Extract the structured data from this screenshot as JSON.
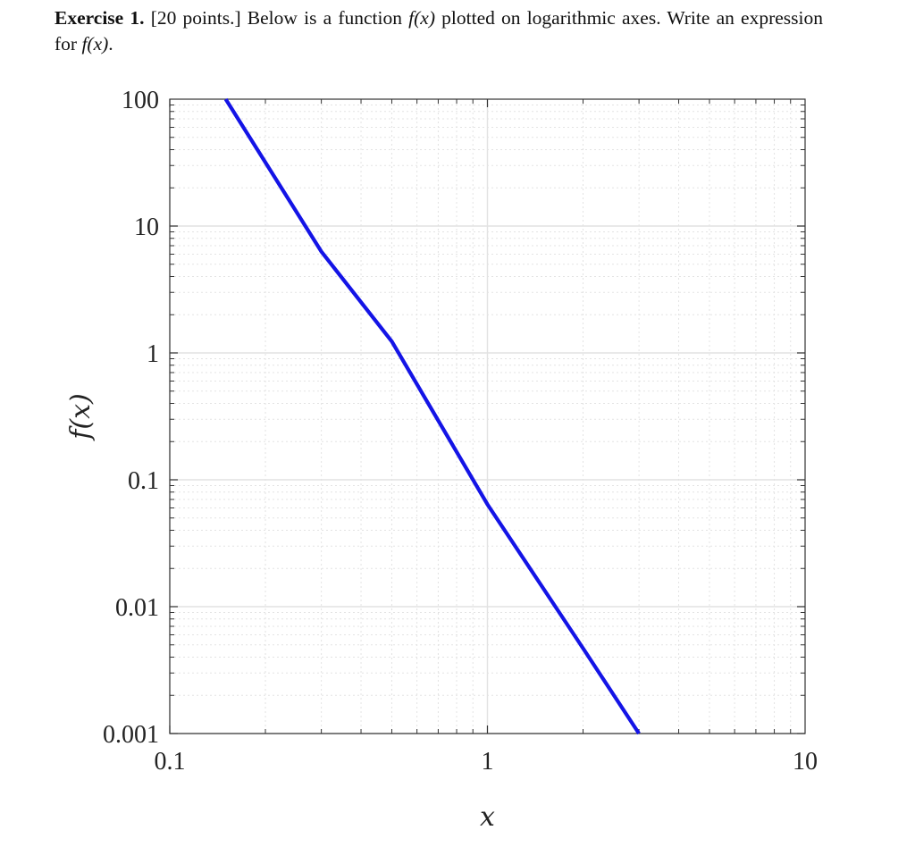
{
  "exercise": {
    "heading": "Exercise 1.",
    "points": "[20 points.]",
    "text_before_fx": "Below is a function",
    "fx": "f(x)",
    "text_after_fx": "plotted on logarithmic axes. Write an expression for",
    "fx_end": "f(x)",
    "end_punct": "."
  },
  "chart_data": {
    "type": "line",
    "title": "",
    "xlabel": "x",
    "ylabel": "f(x)",
    "xscale": "log",
    "yscale": "log",
    "xlim": [
      0.1,
      10
    ],
    "ylim": [
      0.001,
      100
    ],
    "x_ticks": [
      0.1,
      1,
      10
    ],
    "x_tick_labels": [
      "0.1",
      "1",
      "10"
    ],
    "y_ticks": [
      0.001,
      0.01,
      0.1,
      1,
      10,
      100
    ],
    "y_tick_labels": [
      "0.001",
      "0.01",
      "0.1",
      "1",
      "10",
      "100"
    ],
    "grid": true,
    "legend": "none",
    "series": [
      {
        "color": "#1414e6",
        "x": [
          0.15,
          0.3,
          0.5,
          1,
          2,
          3
        ],
        "y": [
          100,
          6.3,
          1.23,
          0.064,
          0.0047,
          0.001
        ]
      }
    ]
  }
}
